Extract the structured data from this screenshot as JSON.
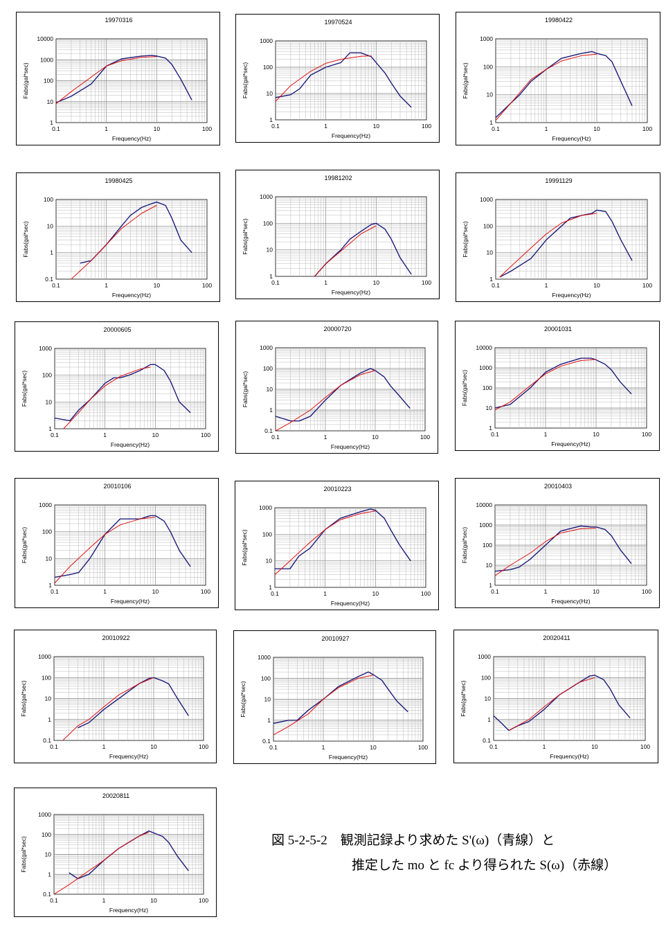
{
  "colors": {
    "observed": "#1c1c7a",
    "model": "#e01010",
    "grid": "#b8b8b8",
    "axis": "#000000"
  },
  "axes": {
    "xlabel": "Frequency(Hz)",
    "ylabel": "Fabs(gal*sec)",
    "x_ticks": [
      "0.1",
      "1",
      "10",
      "100"
    ]
  },
  "caption": {
    "line1": "図 5-2-5-2　観測記録より求めた S'(ω)（青線）と",
    "line2": "推定した mo と fc より得られた S(ω)（赤線）"
  },
  "chart_data": [
    {
      "type": "line",
      "title": "19970316",
      "xlabel": "Frequency(Hz)",
      "ylabel": "Fabs(gal*sec)",
      "xlim": [
        0.1,
        100
      ],
      "ylim": [
        1,
        10000
      ],
      "y_ticks": [
        "1",
        "10",
        "100",
        "1000",
        "10000"
      ],
      "grid": true,
      "log_x": true,
      "log_y": true,
      "series": [
        {
          "x": [
            0.1,
            0.2,
            0.5,
            1,
            2,
            5,
            8,
            10,
            15,
            20,
            30,
            50
          ],
          "values": [
            9,
            18,
            70,
            500,
            1100,
            1500,
            1600,
            1500,
            1200,
            600,
            120,
            12
          ]
        },
        {
          "x": [
            0.1,
            0.2,
            0.5,
            1,
            2,
            5,
            10
          ],
          "values": [
            8,
            30,
            150,
            500,
            900,
            1300,
            1400
          ]
        }
      ]
    },
    {
      "type": "line",
      "title": "19970524",
      "xlabel": "Frequency(Hz)",
      "ylabel": "Fabs(gal*sec)",
      "xlim": [
        0.1,
        100
      ],
      "ylim": [
        1,
        1000
      ],
      "y_ticks": [
        "1",
        "10",
        "100",
        "1000"
      ],
      "grid": true,
      "log_x": true,
      "log_y": true,
      "series": [
        {
          "x": [
            0.1,
            0.2,
            0.3,
            0.5,
            1,
            2,
            3,
            5,
            8,
            10,
            15,
            20,
            30,
            50
          ],
          "values": [
            7,
            9,
            15,
            50,
            100,
            150,
            350,
            350,
            250,
            150,
            60,
            25,
            8,
            3
          ]
        },
        {
          "x": [
            0.1,
            0.2,
            0.5,
            1,
            2,
            5,
            8
          ],
          "values": [
            5,
            20,
            70,
            140,
            200,
            260,
            270
          ]
        }
      ]
    },
    {
      "type": "line",
      "title": "19980422",
      "xlabel": "Frequency(Hz)",
      "ylabel": "Fabs(gal*sec)",
      "xlim": [
        0.1,
        100
      ],
      "ylim": [
        1,
        1000
      ],
      "y_ticks": [
        "1",
        "10",
        "100",
        "1000"
      ],
      "grid": true,
      "log_x": true,
      "log_y": true,
      "series": [
        {
          "x": [
            0.1,
            0.2,
            0.3,
            0.5,
            1,
            2,
            5,
            8,
            10,
            15,
            20,
            30,
            50
          ],
          "values": [
            1.5,
            5,
            10,
            30,
            80,
            200,
            300,
            350,
            300,
            250,
            150,
            30,
            4
          ]
        },
        {
          "x": [
            0.1,
            0.2,
            0.5,
            1,
            2,
            5,
            10
          ],
          "values": [
            1.2,
            5,
            35,
            80,
            160,
            250,
            280
          ]
        }
      ]
    },
    {
      "type": "line",
      "title": "19980425",
      "xlabel": "Frequency(Hz)",
      "ylabel": "Fabs(gal*sec)",
      "xlim": [
        0.1,
        100
      ],
      "ylim": [
        0.1,
        100
      ],
      "y_ticks": [
        "0.1",
        "1",
        "10",
        "100"
      ],
      "grid": true,
      "log_x": true,
      "log_y": true,
      "series": [
        {
          "x": [
            0.3,
            0.5,
            1,
            2,
            3,
            5,
            8,
            10,
            15,
            20,
            30,
            50
          ],
          "values": [
            0.4,
            0.5,
            2,
            10,
            25,
            50,
            70,
            80,
            60,
            20,
            3,
            1
          ]
        },
        {
          "x": [
            0.2,
            0.5,
            1,
            2,
            5,
            10
          ],
          "values": [
            0.1,
            0.5,
            2,
            8,
            30,
            60
          ]
        }
      ]
    },
    {
      "type": "line",
      "title": "19981202",
      "xlabel": "Frequency(Hz)",
      "ylabel": "Fabs(gal*sec)",
      "xlim": [
        0.1,
        100
      ],
      "ylim": [
        1,
        1000
      ],
      "y_ticks": [
        "1",
        "10",
        "100",
        "1000"
      ],
      "grid": true,
      "log_x": true,
      "log_y": true,
      "series": [
        {
          "x": [
            0.6,
            1,
            2,
            3,
            5,
            8,
            10,
            15,
            20,
            30,
            50
          ],
          "values": [
            1,
            3,
            10,
            25,
            50,
            90,
            100,
            60,
            25,
            5,
            1.2
          ]
        },
        {
          "x": [
            0.6,
            1,
            2,
            5,
            10
          ],
          "values": [
            1,
            3,
            9,
            40,
            80
          ]
        }
      ]
    },
    {
      "type": "line",
      "title": "19991129",
      "xlabel": "Frequency(Hz)",
      "ylabel": "Fabs(gal*sec)",
      "xlim": [
        0.1,
        100
      ],
      "ylim": [
        1,
        1000
      ],
      "y_ticks": [
        "1",
        "10",
        "100",
        "1000"
      ],
      "grid": true,
      "log_x": true,
      "log_y": true,
      "series": [
        {
          "x": [
            0.12,
            0.2,
            0.5,
            1,
            2,
            3,
            5,
            8,
            10,
            15,
            20,
            30,
            50
          ],
          "values": [
            1.2,
            2,
            6,
            30,
            100,
            200,
            250,
            300,
            400,
            350,
            150,
            30,
            5
          ]
        },
        {
          "x": [
            0.12,
            0.2,
            0.5,
            1,
            2,
            5,
            10
          ],
          "values": [
            1.2,
            3,
            15,
            50,
            130,
            250,
            300
          ]
        }
      ]
    },
    {
      "type": "line",
      "title": "20000605",
      "xlabel": "Frequency(Hz)",
      "ylabel": "Fabs(gal*sec)",
      "xlim": [
        0.1,
        100
      ],
      "ylim": [
        1,
        1000
      ],
      "y_ticks": [
        "1",
        "10",
        "100",
        "1000"
      ],
      "grid": true,
      "log_x": true,
      "log_y": true,
      "series": [
        {
          "x": [
            0.1,
            0.2,
            0.3,
            0.5,
            1,
            1.5,
            2,
            3,
            5,
            8,
            10,
            15,
            20,
            30,
            50
          ],
          "values": [
            2.5,
            2,
            5,
            12,
            50,
            80,
            80,
            100,
            150,
            250,
            250,
            150,
            60,
            10,
            4
          ]
        },
        {
          "x": [
            0.15,
            0.3,
            0.5,
            1,
            2,
            5,
            8
          ],
          "values": [
            1,
            4,
            12,
            40,
            90,
            170,
            200
          ]
        }
      ]
    },
    {
      "type": "line",
      "title": "20000720",
      "xlabel": "Frequency(Hz)",
      "ylabel": "Fabs(gal*sec)",
      "xlim": [
        0.1,
        100
      ],
      "ylim": [
        0.1,
        1000
      ],
      "y_ticks": [
        "0.1",
        "1",
        "10",
        "100",
        "1000"
      ],
      "grid": true,
      "log_x": true,
      "log_y": true,
      "series": [
        {
          "x": [
            0.1,
            0.2,
            0.3,
            0.5,
            1,
            2,
            5,
            8,
            10,
            15,
            20,
            30,
            50
          ],
          "values": [
            0.5,
            0.3,
            0.3,
            0.5,
            3,
            15,
            60,
            100,
            80,
            40,
            15,
            5,
            1.2
          ]
        },
        {
          "x": [
            0.1,
            0.2,
            0.5,
            1,
            2,
            5,
            10
          ],
          "values": [
            0.1,
            0.25,
            1,
            4,
            15,
            50,
            80
          ]
        }
      ]
    },
    {
      "type": "line",
      "title": "20001031",
      "xlabel": "Frequency(Hz)",
      "ylabel": "Fabs(gal*sec)",
      "xlim": [
        0.1,
        100
      ],
      "ylim": [
        1,
        10000
      ],
      "y_ticks": [
        "1",
        "10",
        "100",
        "1000",
        "10000"
      ],
      "grid": true,
      "log_x": true,
      "log_y": true,
      "series": [
        {
          "x": [
            0.1,
            0.2,
            0.5,
            1,
            2,
            5,
            8,
            10,
            15,
            20,
            30,
            50
          ],
          "values": [
            10,
            15,
            100,
            600,
            1500,
            3000,
            3000,
            2500,
            1500,
            800,
            200,
            50
          ]
        },
        {
          "x": [
            0.1,
            0.2,
            0.5,
            1,
            2,
            5,
            10
          ],
          "values": [
            8,
            20,
            130,
            500,
            1200,
            2300,
            2600
          ]
        }
      ]
    },
    {
      "type": "line",
      "title": "20010106",
      "xlabel": "Frequency(Hz)",
      "ylabel": "Fabs(gal*sec)",
      "xlim": [
        0.1,
        100
      ],
      "ylim": [
        1,
        1000
      ],
      "y_ticks": [
        "1",
        "10",
        "100",
        "1000"
      ],
      "grid": true,
      "log_x": true,
      "log_y": true,
      "series": [
        {
          "x": [
            0.1,
            0.2,
            0.3,
            0.5,
            1,
            2,
            3,
            5,
            8,
            10,
            15,
            20,
            30,
            50
          ],
          "values": [
            2,
            2.5,
            3,
            10,
            80,
            300,
            300,
            300,
            400,
            400,
            250,
            100,
            20,
            5
          ]
        },
        {
          "x": [
            0.1,
            0.2,
            0.5,
            1,
            2,
            5,
            10
          ],
          "values": [
            1.2,
            5,
            25,
            80,
            180,
            300,
            350
          ]
        }
      ]
    },
    {
      "type": "line",
      "title": "20010223",
      "xlabel": "Frequency(Hz)",
      "ylabel": "Fabs(gal*sec)",
      "xlim": [
        0.1,
        100
      ],
      "ylim": [
        1,
        1000
      ],
      "y_ticks": [
        "1",
        "10",
        "100",
        "1000"
      ],
      "grid": true,
      "log_x": true,
      "log_y": true,
      "series": [
        {
          "x": [
            0.1,
            0.2,
            0.3,
            0.5,
            1,
            2,
            5,
            8,
            10,
            15,
            20,
            30,
            50
          ],
          "values": [
            5,
            5,
            15,
            30,
            150,
            400,
            700,
            900,
            800,
            400,
            150,
            40,
            10
          ]
        },
        {
          "x": [
            0.1,
            0.2,
            0.5,
            1,
            2,
            5,
            10
          ],
          "values": [
            3,
            10,
            50,
            150,
            350,
            600,
            750
          ]
        }
      ]
    },
    {
      "type": "line",
      "title": "20010403",
      "xlabel": "Frequency(Hz)",
      "ylabel": "Fabs(gal*sec)",
      "xlim": [
        0.1,
        100
      ],
      "ylim": [
        1,
        10000
      ],
      "y_ticks": [
        "1",
        "10",
        "100",
        "1000",
        "10000"
      ],
      "grid": true,
      "log_x": true,
      "log_y": true,
      "series": [
        {
          "x": [
            0.1,
            0.2,
            0.3,
            0.5,
            1,
            2,
            5,
            8,
            10,
            15,
            20,
            30,
            50
          ],
          "values": [
            5,
            6,
            8,
            20,
            100,
            500,
            900,
            800,
            800,
            600,
            300,
            60,
            12
          ]
        },
        {
          "x": [
            0.1,
            0.2,
            0.5,
            1,
            2,
            5,
            10
          ],
          "values": [
            3,
            10,
            40,
            150,
            400,
            650,
            700
          ]
        }
      ]
    },
    {
      "type": "line",
      "title": "20010922",
      "xlabel": "Frequency(Hz)",
      "ylabel": "Fabs(gal*sec)",
      "xlim": [
        0.1,
        100
      ],
      "ylim": [
        0.1,
        1000
      ],
      "y_ticks": [
        "0.1",
        "1",
        "10",
        "100",
        "1000"
      ],
      "grid": true,
      "log_x": true,
      "log_y": true,
      "series": [
        {
          "x": [
            0.3,
            0.5,
            1,
            2,
            5,
            8,
            10,
            15,
            20,
            30,
            50
          ],
          "values": [
            0.4,
            0.7,
            3,
            10,
            50,
            90,
            100,
            70,
            50,
            10,
            1.5
          ]
        },
        {
          "x": [
            0.15,
            0.3,
            0.5,
            1,
            2,
            5,
            10
          ],
          "values": [
            0.1,
            0.5,
            1,
            4,
            15,
            50,
            100
          ]
        }
      ]
    },
    {
      "type": "line",
      "title": "20010927",
      "xlabel": "Frequency(Hz)",
      "ylabel": "Fabs(gal*sec)",
      "xlim": [
        0.1,
        100
      ],
      "ylim": [
        0.1,
        1000
      ],
      "y_ticks": [
        "0.1",
        "1",
        "10",
        "100",
        "1000"
      ],
      "grid": true,
      "log_x": true,
      "log_y": true,
      "series": [
        {
          "x": [
            0.1,
            0.2,
            0.3,
            0.5,
            1,
            2,
            5,
            8,
            10,
            15,
            20,
            30,
            50
          ],
          "values": [
            0.7,
            1,
            1,
            3,
            10,
            40,
            120,
            200,
            150,
            80,
            30,
            8,
            2.5
          ]
        },
        {
          "x": [
            0.1,
            0.2,
            0.5,
            1,
            2,
            5,
            10
          ],
          "values": [
            0.2,
            0.5,
            2,
            10,
            35,
            100,
            140
          ]
        }
      ]
    },
    {
      "type": "line",
      "title": "20020411",
      "xlabel": "Frequency(Hz)",
      "ylabel": "Fabs(gal*sec)",
      "xlim": [
        0.1,
        100
      ],
      "ylim": [
        0.1,
        1000
      ],
      "y_ticks": [
        "0.1",
        "1",
        "10",
        "100",
        "1000"
      ],
      "grid": true,
      "log_x": true,
      "log_y": true,
      "series": [
        {
          "x": [
            0.1,
            0.15,
            0.2,
            0.3,
            0.5,
            1,
            2,
            5,
            8,
            10,
            15,
            20,
            30,
            50
          ],
          "values": [
            1.5,
            0.6,
            0.3,
            0.5,
            0.8,
            3,
            15,
            60,
            120,
            130,
            80,
            30,
            5,
            1.2
          ]
        },
        {
          "x": [
            0.2,
            0.5,
            1,
            2,
            5,
            10
          ],
          "values": [
            0.3,
            1,
            4,
            15,
            60,
            100
          ]
        }
      ]
    },
    {
      "type": "line",
      "title": "20020811",
      "xlabel": "Frequency(Hz)",
      "ylabel": "Fabs(gal*sec)",
      "xlim": [
        0.1,
        100
      ],
      "ylim": [
        0.1,
        1000
      ],
      "y_ticks": [
        "0.1",
        "1",
        "10",
        "100",
        "1000"
      ],
      "grid": true,
      "log_x": true,
      "log_y": true,
      "series": [
        {
          "x": [
            0.2,
            0.3,
            0.5,
            1,
            2,
            5,
            8,
            10,
            15,
            20,
            30,
            50
          ],
          "values": [
            1.2,
            0.6,
            1,
            5,
            20,
            80,
            150,
            120,
            80,
            40,
            8,
            1.5
          ]
        },
        {
          "x": [
            0.1,
            0.2,
            0.5,
            1,
            2,
            5,
            8
          ],
          "values": [
            0.1,
            0.3,
            1.5,
            5,
            20,
            80,
            130
          ]
        }
      ]
    }
  ]
}
